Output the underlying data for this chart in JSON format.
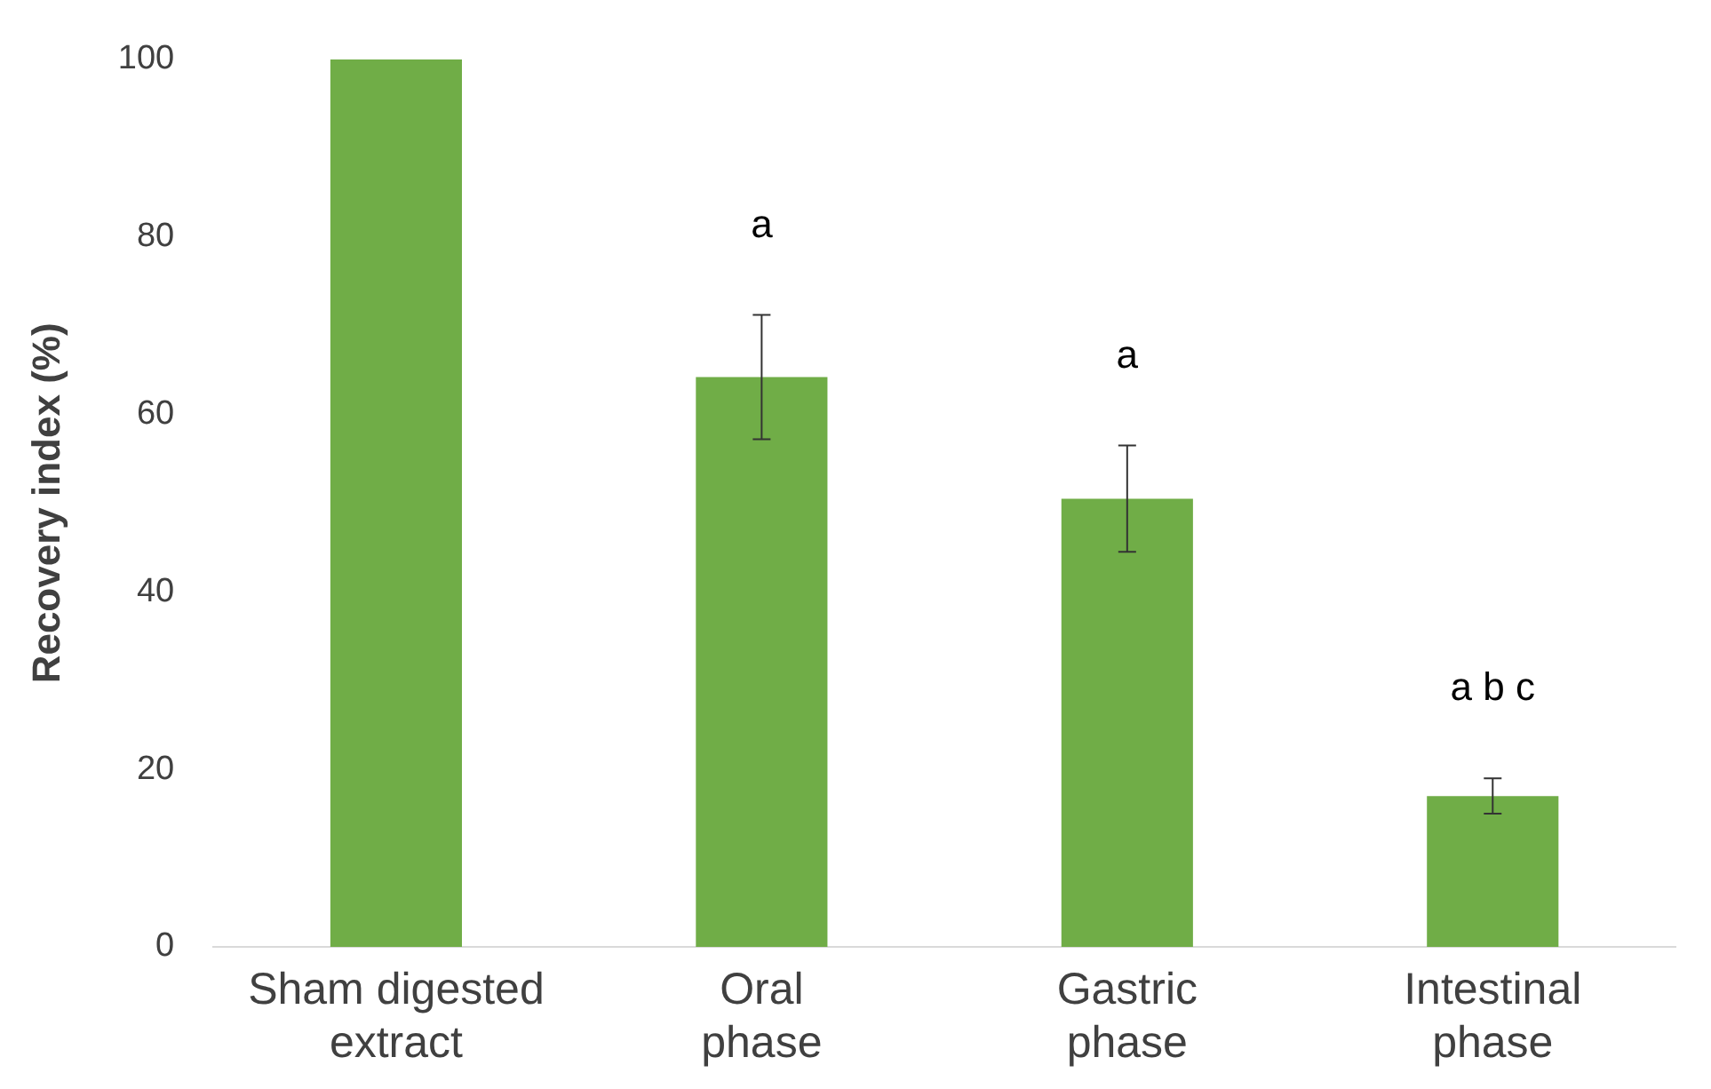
{
  "chart_data": {
    "type": "bar",
    "ylabel": "Recovery index (%)",
    "categories": [
      "Sham digested extract",
      "Oral phase",
      "Gastric phase",
      "Intestinal phase"
    ],
    "values": [
      100,
      64.2,
      50.5,
      17
    ],
    "errors": [
      null,
      7,
      6,
      2
    ],
    "color": "#70ad47",
    "ylim": [
      0,
      100
    ],
    "yticks": [
      0,
      20,
      40,
      60,
      80,
      100
    ],
    "grid": false,
    "legend": false,
    "annotations": [
      "a",
      "a",
      "a b c"
    ]
  }
}
